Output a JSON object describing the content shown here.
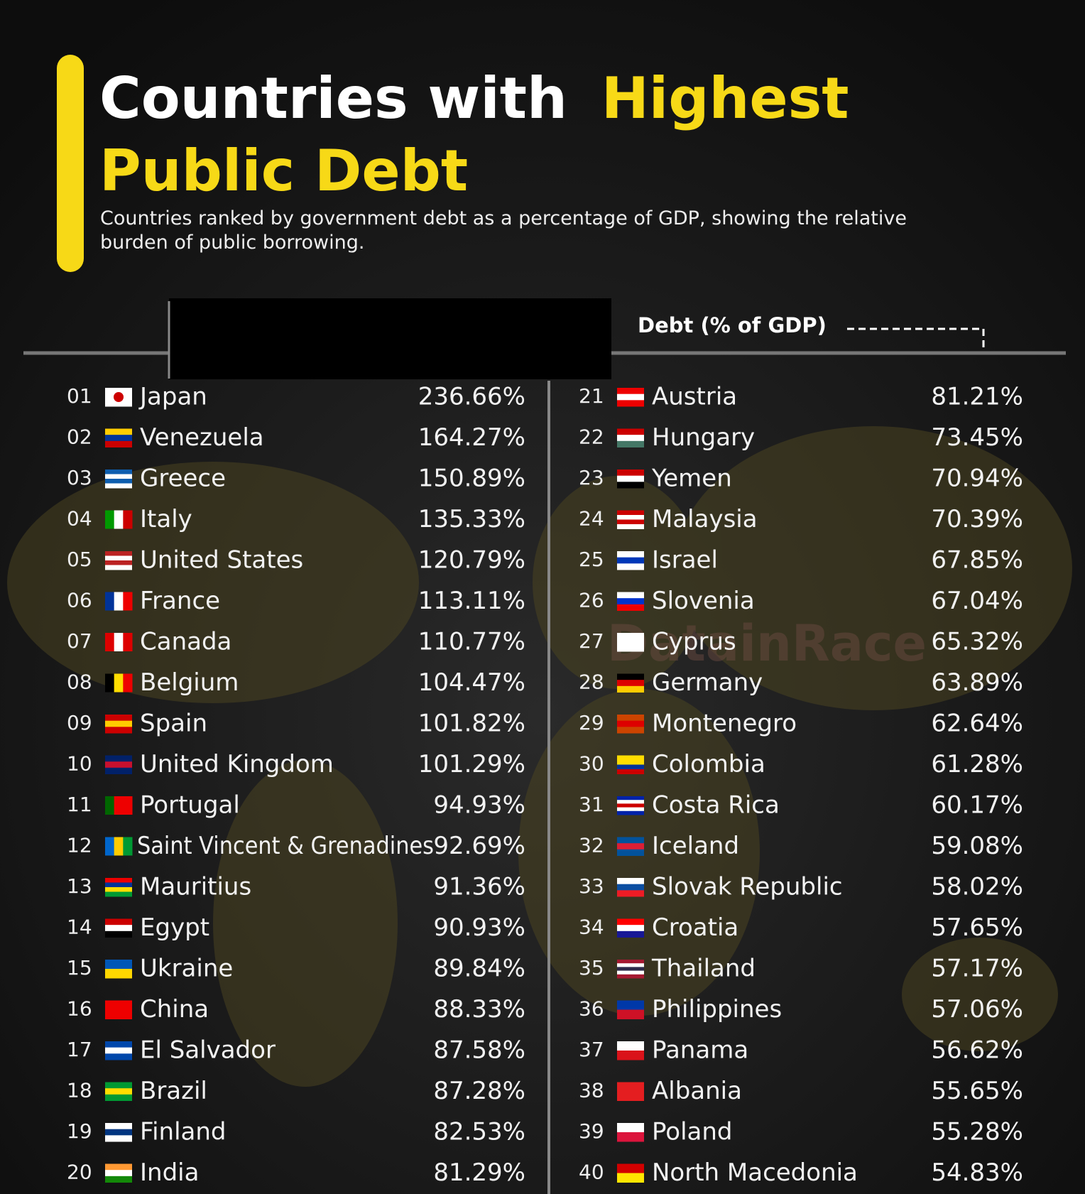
{
  "header": {
    "title_white": "Countries with",
    "title_yellow_1": "Highest",
    "title_yellow_2": "Public Debt",
    "subtitle_1": "Countries ranked by government debt as a percentage of GDP, showing the relative",
    "subtitle_2": "burden of public borrowing.",
    "column_header": "Debt (% of GDP)",
    "watermark": "DatainRace"
  },
  "table": {
    "rows": [
      [
        "01",
        "Japan",
        "236.66%"
      ],
      [
        "02",
        "Venezuela",
        "164.27%"
      ],
      [
        "03",
        "Greece",
        "150.89%"
      ],
      [
        "04",
        "Italy",
        "135.33%"
      ],
      [
        "05",
        "United States",
        "120.79%"
      ],
      [
        "06",
        "France",
        "113.11%"
      ],
      [
        "07",
        "Canada",
        "110.77%"
      ],
      [
        "08",
        "Belgium",
        "104.47%"
      ],
      [
        "09",
        "Spain",
        "101.82%"
      ],
      [
        "10",
        "United Kingdom",
        "101.29%"
      ],
      [
        "11",
        "Portugal",
        "94.93%"
      ],
      [
        "12",
        "Saint Vincent & Grenadines",
        "92.69%"
      ],
      [
        "13",
        "Mauritius",
        "91.36%"
      ],
      [
        "14",
        "Egypt",
        "90.93%"
      ],
      [
        "15",
        "Ukraine",
        "89.84%"
      ],
      [
        "16",
        "China",
        "88.33%"
      ],
      [
        "17",
        "El Salvador",
        "87.58%"
      ],
      [
        "18",
        "Brazil",
        "87.28%"
      ],
      [
        "19",
        "Finland",
        "82.53%"
      ],
      [
        "20",
        "India",
        "81.29%"
      ],
      [
        "21",
        "Austria",
        "81.21%"
      ],
      [
        "22",
        "Hungary",
        "73.45%"
      ],
      [
        "23",
        "Yemen",
        "70.94%"
      ],
      [
        "24",
        "Malaysia",
        "70.39%"
      ],
      [
        "25",
        "Israel",
        "67.85%"
      ],
      [
        "26",
        "Slovenia",
        "67.04%"
      ],
      [
        "27",
        "Cyprus",
        "65.32%"
      ],
      [
        "28",
        "Germany",
        "63.89%"
      ],
      [
        "29",
        "Montenegro",
        "62.64%"
      ],
      [
        "30",
        "Colombia",
        "61.28%"
      ],
      [
        "31",
        "Costa Rica",
        "60.17%"
      ],
      [
        "32",
        "Iceland",
        "59.08%"
      ],
      [
        "33",
        "Slovak Republic",
        "58.02%"
      ],
      [
        "34",
        "Croatia",
        "57.65%"
      ],
      [
        "35",
        "Thailand",
        "57.17%"
      ],
      [
        "36",
        "Philippines",
        "57.06%"
      ],
      [
        "37",
        "Panama",
        "56.62%"
      ],
      [
        "38",
        "Albania",
        "55.65%"
      ],
      [
        "39",
        "Poland",
        "55.28%"
      ],
      [
        "40",
        "North Macedonia",
        "54.83%"
      ]
    ]
  }
}
